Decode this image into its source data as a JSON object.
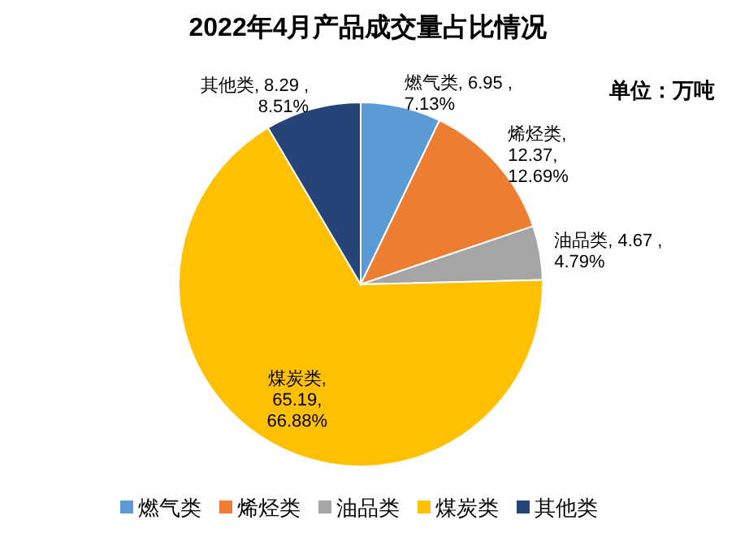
{
  "chart_data": {
    "type": "pie",
    "title": "2022年4月产品成交量占比情况",
    "annotations": [
      "单位：万吨"
    ],
    "categories": [
      "燃气类",
      "烯烃类",
      "油品类",
      "煤炭类",
      "其他类"
    ],
    "values": [
      6.95,
      12.37,
      4.67,
      65.19,
      8.29
    ],
    "colors": [
      "#5b9bd5",
      "#ed7d31",
      "#a5a5a5",
      "#ffc000",
      "#264478"
    ],
    "value_labels": [
      "燃气类, 6.95 ,\n7.13%",
      "烯烃类,\n12.37,\n12.69%",
      "油品类, 4.67 ,\n4.79%",
      "煤炭类,\n65.19,\n66.88%",
      "其他类, 8.29 ,\n8.51%"
    ],
    "legend": "bottom"
  }
}
